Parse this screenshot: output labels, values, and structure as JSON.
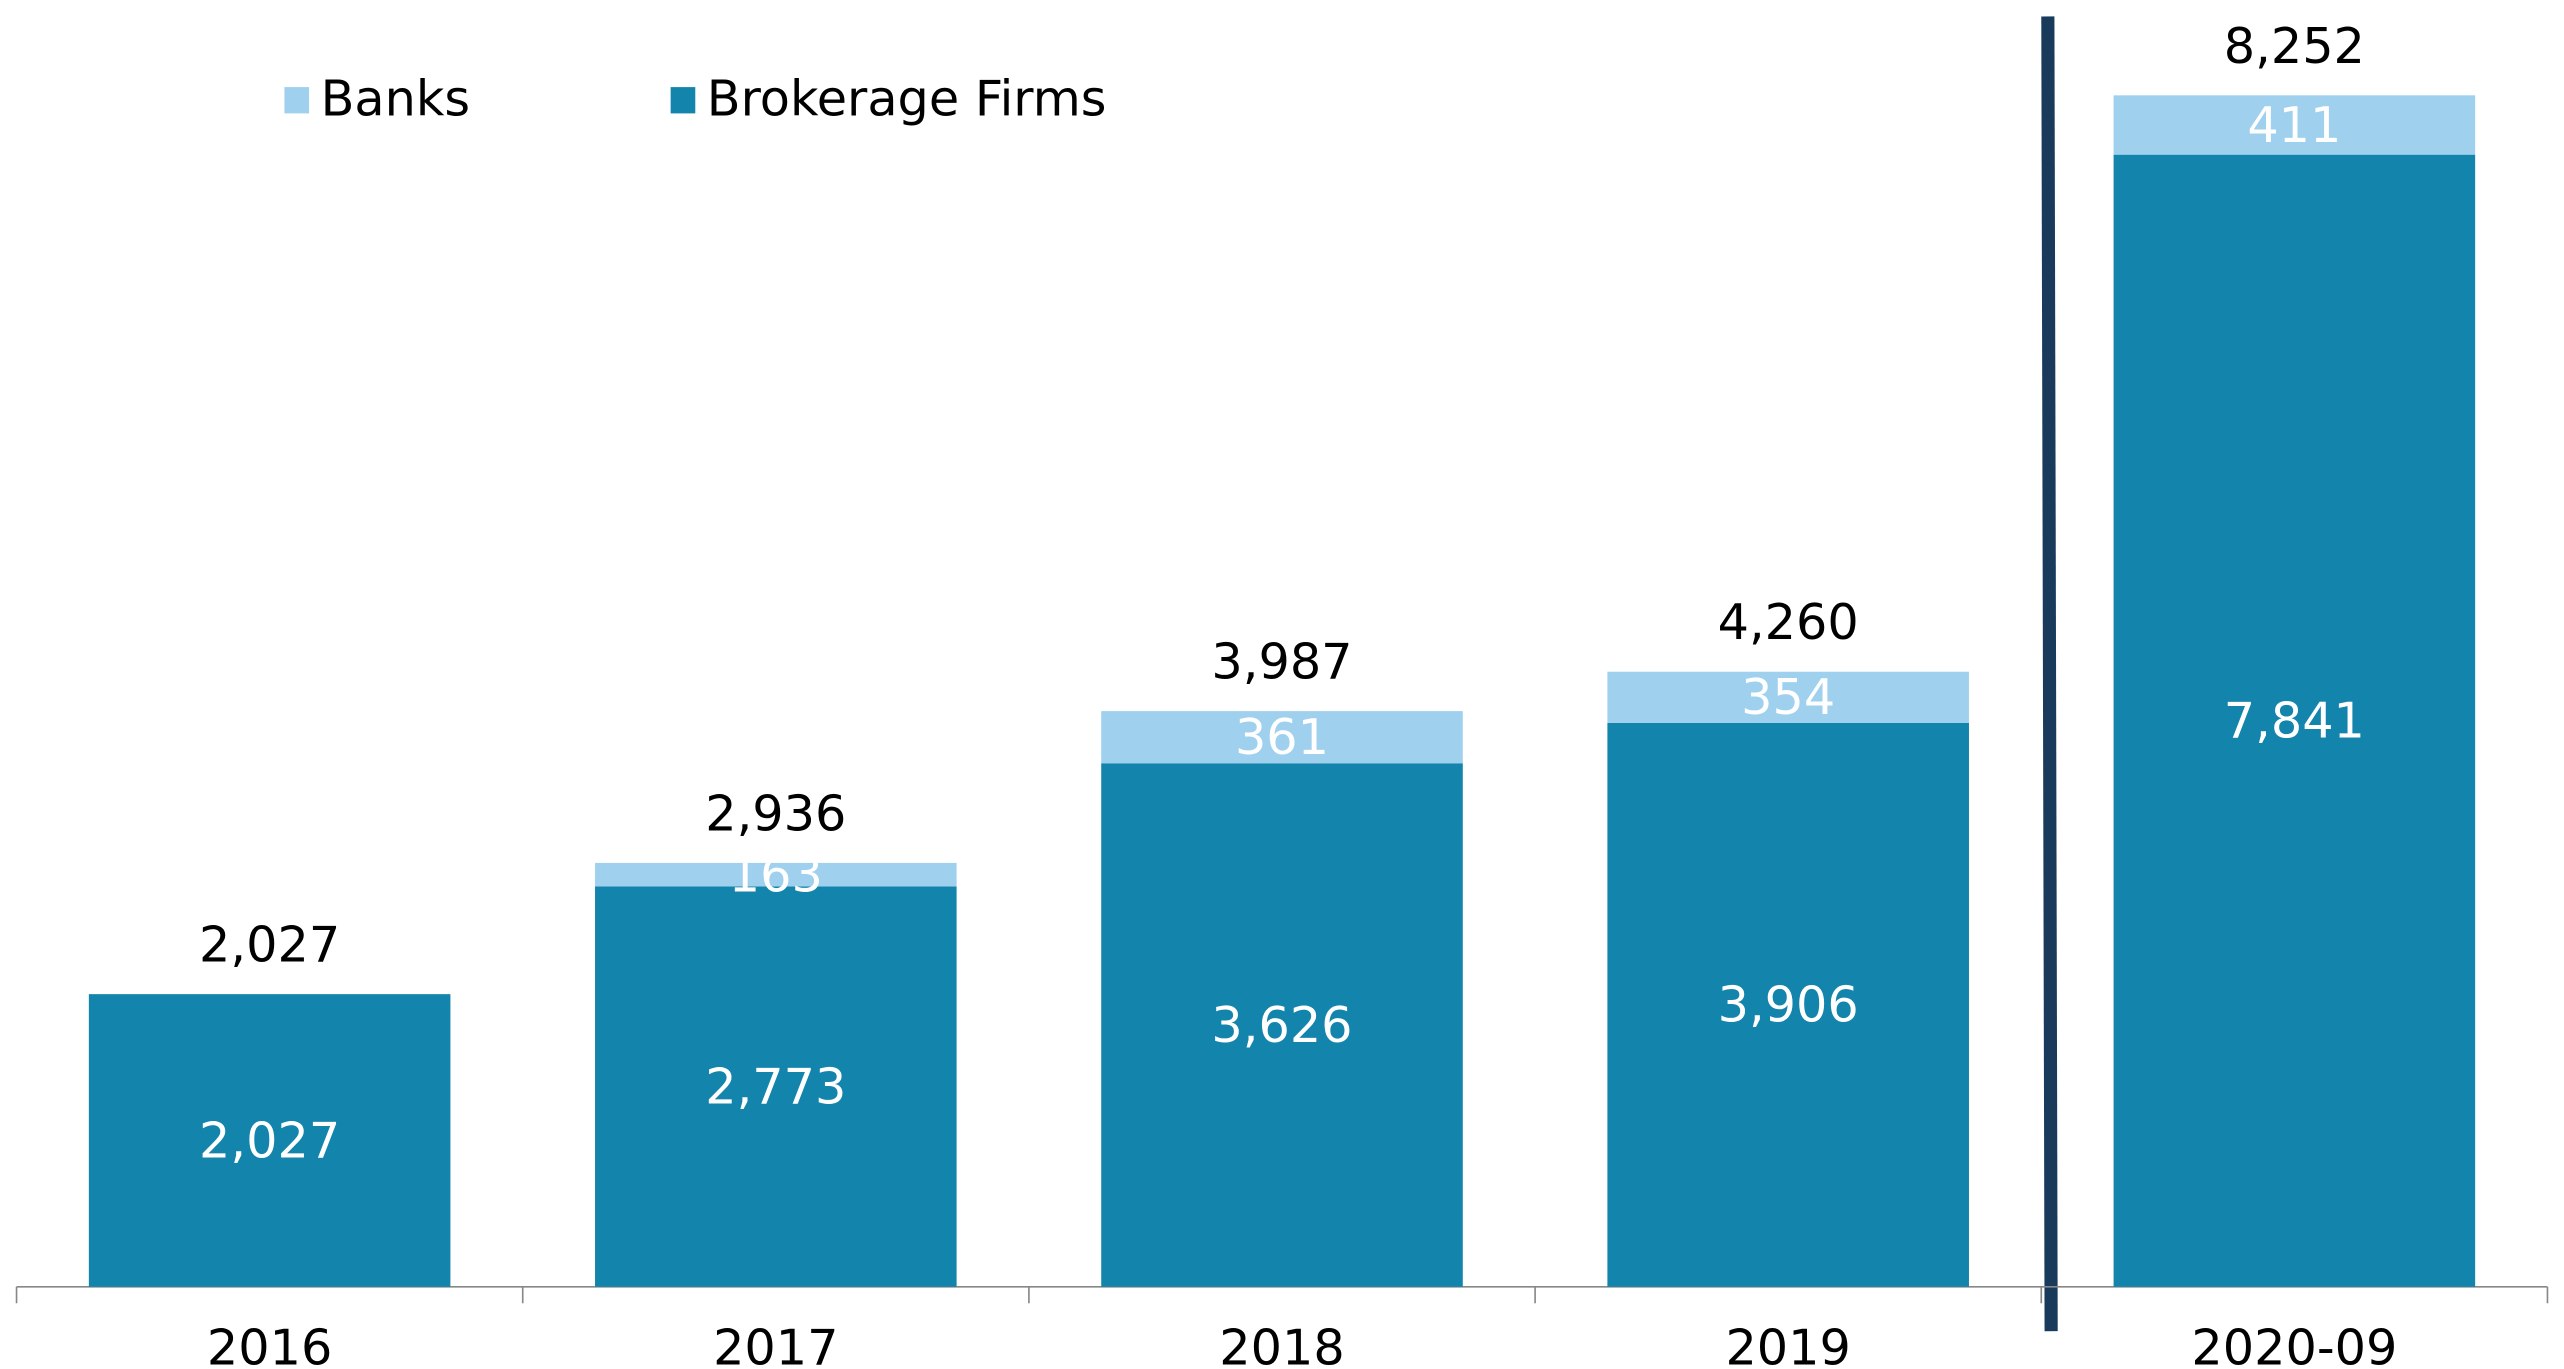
{
  "chart_data": {
    "type": "stacked-bar",
    "categories": [
      "2016",
      "2017",
      "2018",
      "2019",
      "2020-09"
    ],
    "series": [
      {
        "name": "Brokerage Firms",
        "color": "#1384ac",
        "values": [
          2027,
          2773,
          3626,
          3906,
          7841
        ],
        "value_labels": [
          "2,027",
          "2,773",
          "3,626",
          "3,906",
          "7,841"
        ],
        "label_color": "#ffffff"
      },
      {
        "name": "Banks",
        "color": "#9fd0ee",
        "values": [
          null,
          163,
          361,
          354,
          411
        ],
        "label_color": "#ffffff"
      }
    ],
    "totals": {
      "values": [
        2027,
        2936,
        3987,
        4260,
        8252
      ],
      "value_labels": [
        "2,027",
        "2,936",
        "3,987",
        "4,260",
        "8,252"
      ]
    },
    "legend": "top-left"
  }
}
